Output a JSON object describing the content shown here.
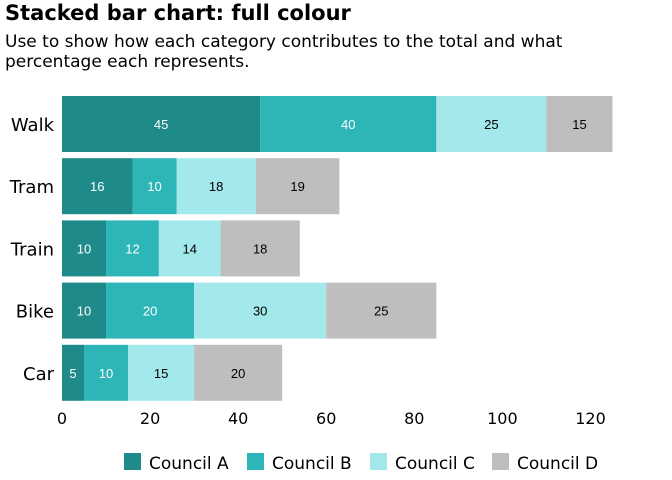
{
  "chart_data": {
    "type": "bar",
    "orientation": "horizontal",
    "stacked": true,
    "title": "Stacked bar chart: full colour",
    "subtitle": "Use to show how each category contributes to the total and what percentage each represents.",
    "categories": [
      "Walk",
      "Tram",
      "Train",
      "Bike",
      "Car"
    ],
    "series": [
      {
        "name": "Council A",
        "color": "#1f8a8a",
        "label_color": "#ffffff",
        "values": [
          45,
          16,
          10,
          10,
          5
        ]
      },
      {
        "name": "Council B",
        "color": "#2db5b8",
        "label_color": "#ffffff",
        "values": [
          40,
          10,
          12,
          20,
          10
        ]
      },
      {
        "name": "Council C",
        "color": "#a3e8ea",
        "label_color": "#000000",
        "values": [
          25,
          18,
          14,
          30,
          15
        ]
      },
      {
        "name": "Council D",
        "color": "#bebebe",
        "label_color": "#000000",
        "values": [
          15,
          19,
          18,
          25,
          20
        ]
      }
    ],
    "xlim": [
      0,
      125
    ],
    "xticks": [
      "0",
      "20",
      "40",
      "60",
      "80",
      "100",
      "120"
    ],
    "grid": false,
    "legend_position": "bottom"
  }
}
